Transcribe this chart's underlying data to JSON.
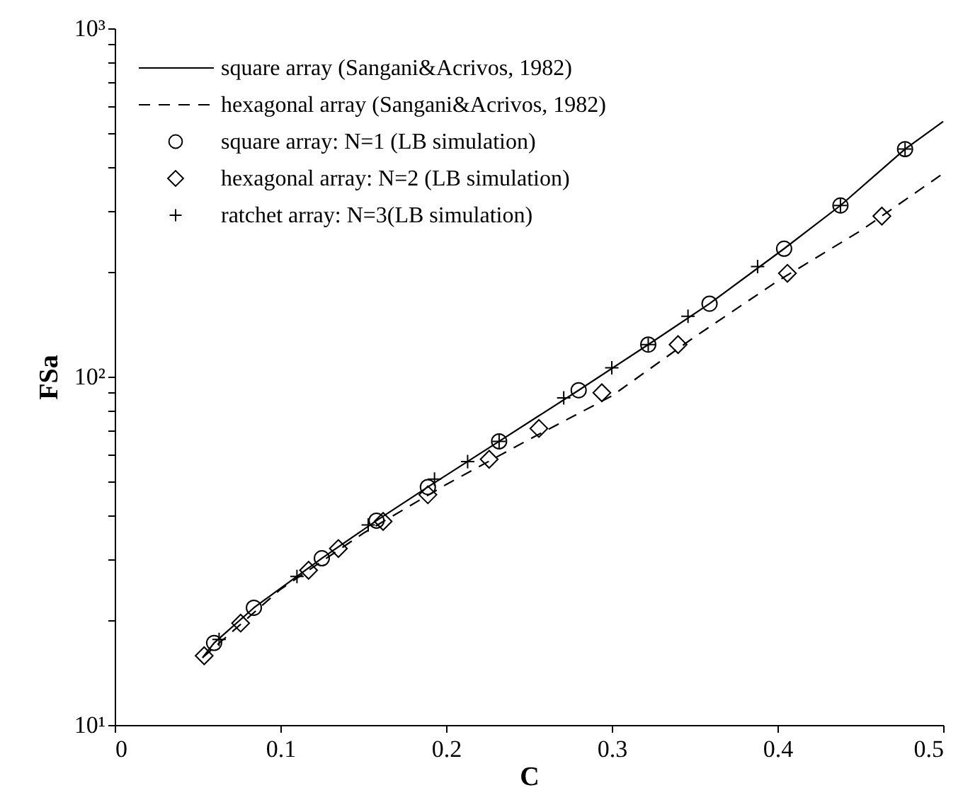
{
  "chart_data": {
    "type": "scatter",
    "xlabel": "C",
    "ylabel": "FSa",
    "log": "y",
    "xlim": [
      0,
      0.5
    ],
    "xticks": [
      0,
      0.1,
      0.2,
      0.3,
      0.4,
      0.5
    ],
    "ylim": [
      10,
      1000
    ],
    "yticks": [
      {
        "value": 10,
        "label": "10¹"
      },
      {
        "value": 20,
        "label": null
      },
      {
        "value": 30,
        "label": null
      },
      {
        "value": 40,
        "label": null
      },
      {
        "value": 50,
        "label": null
      },
      {
        "value": 60,
        "label": null
      },
      {
        "value": 70,
        "label": null
      },
      {
        "value": 80,
        "label": null
      },
      {
        "value": 90,
        "label": null
      },
      {
        "value": 100,
        "label": "10²"
      },
      {
        "value": 200,
        "label": null
      },
      {
        "value": 300,
        "label": null
      },
      {
        "value": 400,
        "label": null
      },
      {
        "value": 500,
        "label": null
      },
      {
        "value": 600,
        "label": null
      },
      {
        "value": 700,
        "label": null
      },
      {
        "value": 800,
        "label": null
      },
      {
        "value": 900,
        "label": null
      },
      {
        "value": 1000,
        "label": "10³"
      }
    ],
    "grid": false,
    "legend": "top left",
    "series": [
      {
        "name": "square array (Sangani&Acrivos, 1982)",
        "type": "line",
        "line_style": "solid",
        "marker": "none",
        "color": "#000000",
        "x": [
          0.053,
          0.06,
          0.084,
          0.125,
          0.158,
          0.189,
          0.232,
          0.28,
          0.322,
          0.359,
          0.404,
          0.438,
          0.477,
          0.5
        ],
        "values": [
          15.6,
          17.2,
          21.7,
          30.1,
          38.6,
          48.2,
          65.2,
          91.4,
          123.6,
          162,
          233,
          310,
          450,
          540
        ]
      },
      {
        "name": "hexagonal array (Sangani&Acrivos, 1982)",
        "type": "line",
        "line_style": "dashed",
        "marker": "none",
        "color": "#000000",
        "x": [
          0.053,
          0.1,
          0.15,
          0.2,
          0.25,
          0.3,
          0.35,
          0.4,
          0.45,
          0.5
        ],
        "values": [
          15.6,
          24.5,
          35.5,
          49,
          66,
          88,
          130,
          188,
          262,
          383
        ]
      },
      {
        "name": "square array: N=1 (LB simulation)",
        "type": "scatter",
        "marker": "circle",
        "color": "#000000",
        "x": [
          0.06,
          0.084,
          0.125,
          0.158,
          0.189,
          0.232,
          0.28,
          0.322,
          0.359,
          0.404,
          0.438,
          0.477
        ],
        "values": [
          17.2,
          21.7,
          30.1,
          38.6,
          48.2,
          65.2,
          91.4,
          123.6,
          162,
          233,
          310,
          450
        ]
      },
      {
        "name": "hexagonal array: N=2 (LB simulation)",
        "type": "scatter",
        "marker": "diamond",
        "color": "#000000",
        "x": [
          0.054,
          0.076,
          0.117,
          0.135,
          0.162,
          0.189,
          0.226,
          0.256,
          0.294,
          0.34,
          0.406,
          0.463
        ],
        "values": [
          15.8,
          19.6,
          27.8,
          32.1,
          38.4,
          45.8,
          57.9,
          71.0,
          89.9,
          123.6,
          198,
          289
        ]
      },
      {
        "name": "ratchet array: N=3(LB simulation)",
        "type": "scatter",
        "marker": "cross",
        "color": "#000000",
        "x": [
          0.063,
          0.11,
          0.153,
          0.193,
          0.213,
          0.232,
          0.271,
          0.3,
          0.322,
          0.346,
          0.388,
          0.438,
          0.477
        ],
        "values": [
          17.6,
          26.7,
          37.5,
          50.8,
          57.0,
          65.2,
          86.9,
          106,
          123.6,
          149,
          207,
          310,
          450
        ]
      }
    ]
  }
}
